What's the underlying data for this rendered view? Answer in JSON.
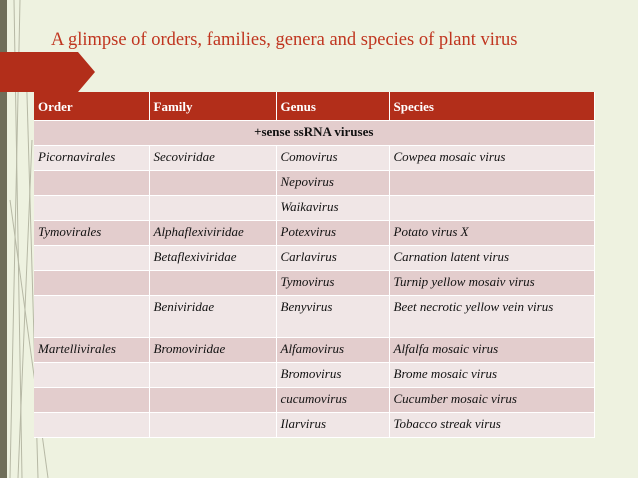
{
  "slide": {
    "title": "A glimpse of orders, families, genera and species of plant virus",
    "accent_color": "#b22e1a",
    "title_color": "#c0351f"
  },
  "table": {
    "headers": [
      "Order",
      "Family",
      "Genus",
      "Species"
    ],
    "group_label": "+sense ssRNA viruses",
    "rows": [
      [
        "Picornavirales",
        "Secoviridae",
        "Comovirus",
        "Cowpea mosaic virus"
      ],
      [
        "",
        "",
        "Nepovirus",
        ""
      ],
      [
        "",
        "",
        "Waikavirus",
        ""
      ],
      [
        "Tymovirales",
        "Alphaflexiviridae",
        "Potexvirus",
        "Potato virus X"
      ],
      [
        "",
        "Betaflexiviridae",
        "Carlavirus",
        "Carnation latent virus"
      ],
      [
        "",
        "",
        "Tymovirus",
        "Turnip yellow mosaiv virus"
      ],
      [
        "",
        "Beniviridae",
        "Benyvirus",
        "Beet necrotic yellow vein virus"
      ],
      [
        "Martellivirales",
        "Bromoviridae",
        "Alfamovirus",
        "Alfalfa mosaic virus"
      ],
      [
        "",
        "",
        "Bromovirus",
        "Brome mosaic virus"
      ],
      [
        "",
        "",
        "cucumovirus",
        "Cucumber mosaic virus"
      ],
      [
        "",
        "",
        "Ilarvirus",
        "Tobacco streak virus"
      ]
    ]
  }
}
